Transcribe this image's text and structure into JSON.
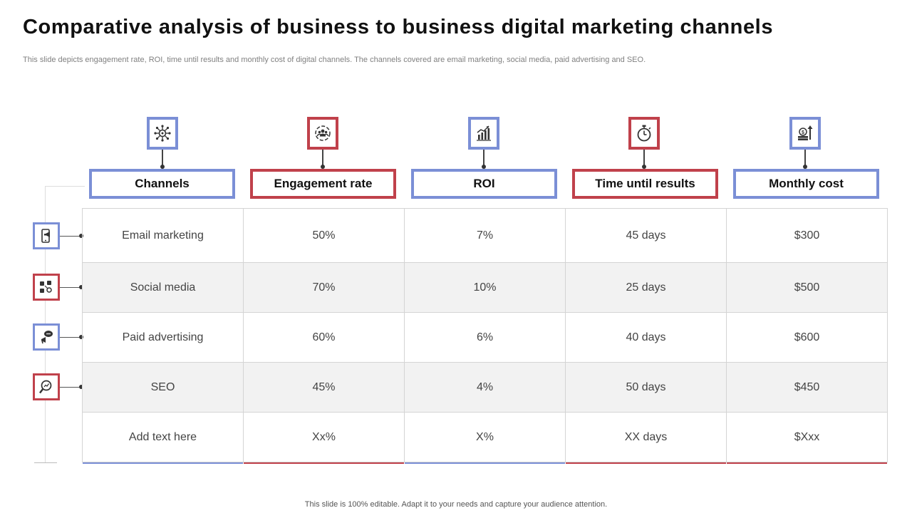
{
  "slide": {
    "title": "Comparative analysis of business to business digital marketing channels",
    "subtitle": "This slide depicts engagement rate, ROI, time until results and monthly cost of digital channels. The channels covered are email marketing, social media, paid advertising and SEO.",
    "footer": "This slide is 100% editable. Adapt it to your  needs and capture your audience attention."
  },
  "colors": {
    "accent_blue": "#7b8fd6",
    "accent_red": "#c0414b"
  },
  "columns": [
    {
      "label": "Channels",
      "icon": "network-hub-icon",
      "accent": "blue"
    },
    {
      "label": "Engagement rate",
      "icon": "team-engagement-icon",
      "accent": "red"
    },
    {
      "label": "ROI",
      "icon": "growth-chart-icon",
      "accent": "blue"
    },
    {
      "label": "Time until results",
      "icon": "stopwatch-icon",
      "accent": "red"
    },
    {
      "label": "Monthly cost",
      "icon": "money-growth-icon",
      "accent": "blue"
    }
  ],
  "rows": [
    {
      "icon": "mobile-marketing-icon",
      "cells": [
        "Email marketing",
        "50%",
        "7%",
        "45 days",
        "$300"
      ]
    },
    {
      "icon": "social-media-icon",
      "cells": [
        "Social media",
        "70%",
        "10%",
        "25 days",
        "$500"
      ]
    },
    {
      "icon": "advertising-megaphone-icon",
      "cells": [
        "Paid advertising",
        "60%",
        "6%",
        "40 days",
        "$600"
      ]
    },
    {
      "icon": "seo-search-icon",
      "cells": [
        "SEO",
        "45%",
        "4%",
        "50 days",
        "$450"
      ]
    },
    {
      "icon": "",
      "cells": [
        "Add text here",
        "Xx%",
        "X%",
        "XX days",
        "$Xxx"
      ]
    }
  ]
}
